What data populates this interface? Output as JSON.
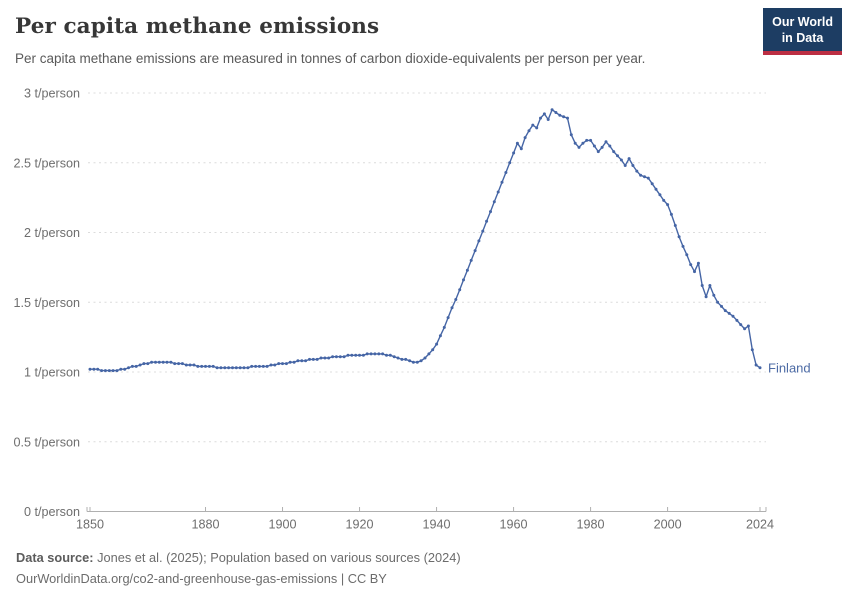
{
  "header": {
    "title": "Per capita methane emissions",
    "subtitle": "Per capita methane emissions are measured in tonnes of carbon dioxide-equivalents per person per year.",
    "logo": {
      "line1": "Our World",
      "line2": "in Data"
    }
  },
  "chart_data": {
    "type": "line",
    "title": "Per capita methane emissions",
    "unit": "t/person",
    "entity": "Finland",
    "xlim": [
      1850,
      2024
    ],
    "ylim": [
      0,
      3
    ],
    "grid": "horizontal dashed",
    "legend_position": "end-of-line label",
    "x_ticks": [
      1850,
      1880,
      1900,
      1920,
      1940,
      1960,
      1980,
      2000,
      2024
    ],
    "y_ticks": [
      {
        "value": 0,
        "label": "0 t/person"
      },
      {
        "value": 0.5,
        "label": "0.5 t/person"
      },
      {
        "value": 1,
        "label": "1 t/person"
      },
      {
        "value": 1.5,
        "label": "1.5 t/person"
      },
      {
        "value": 2,
        "label": "2 t/person"
      },
      {
        "value": 2.5,
        "label": "2.5 t/person"
      },
      {
        "value": 3,
        "label": "3 t/person"
      }
    ],
    "colors": {
      "grid": "#dcdcdc",
      "axis": "#b0b0b0",
      "series_label": "#4d6ba5"
    },
    "years": [
      1850,
      1851,
      1852,
      1853,
      1854,
      1855,
      1856,
      1857,
      1858,
      1859,
      1860,
      1861,
      1862,
      1863,
      1864,
      1865,
      1866,
      1867,
      1868,
      1869,
      1870,
      1871,
      1872,
      1873,
      1874,
      1875,
      1876,
      1877,
      1878,
      1879,
      1880,
      1881,
      1882,
      1883,
      1884,
      1885,
      1886,
      1887,
      1888,
      1889,
      1890,
      1891,
      1892,
      1893,
      1894,
      1895,
      1896,
      1897,
      1898,
      1899,
      1900,
      1901,
      1902,
      1903,
      1904,
      1905,
      1906,
      1907,
      1908,
      1909,
      1910,
      1911,
      1912,
      1913,
      1914,
      1915,
      1916,
      1917,
      1918,
      1919,
      1920,
      1921,
      1922,
      1923,
      1924,
      1925,
      1926,
      1927,
      1928,
      1929,
      1930,
      1931,
      1932,
      1933,
      1934,
      1935,
      1936,
      1937,
      1938,
      1939,
      1940,
      1941,
      1942,
      1943,
      1944,
      1945,
      1946,
      1947,
      1948,
      1949,
      1950,
      1951,
      1952,
      1953,
      1954,
      1955,
      1956,
      1957,
      1958,
      1959,
      1960,
      1961,
      1962,
      1963,
      1964,
      1965,
      1966,
      1967,
      1968,
      1969,
      1970,
      1971,
      1972,
      1973,
      1974,
      1975,
      1976,
      1977,
      1978,
      1979,
      1980,
      1981,
      1982,
      1983,
      1984,
      1985,
      1986,
      1987,
      1988,
      1989,
      1990,
      1991,
      1992,
      1993,
      1994,
      1995,
      1996,
      1997,
      1998,
      1999,
      2000,
      2001,
      2002,
      2003,
      2004,
      2005,
      2006,
      2007,
      2008,
      2009,
      2010,
      2011,
      2012,
      2013,
      2014,
      2015,
      2016,
      2017,
      2018,
      2019,
      2020,
      2021,
      2022,
      2023,
      2024
    ],
    "series": [
      {
        "name": "Finland",
        "color": "#4565a5",
        "values": [
          1.02,
          1.02,
          1.02,
          1.01,
          1.01,
          1.01,
          1.01,
          1.01,
          1.02,
          1.02,
          1.03,
          1.04,
          1.04,
          1.05,
          1.06,
          1.06,
          1.07,
          1.07,
          1.07,
          1.07,
          1.07,
          1.07,
          1.06,
          1.06,
          1.06,
          1.05,
          1.05,
          1.05,
          1.04,
          1.04,
          1.04,
          1.04,
          1.04,
          1.03,
          1.03,
          1.03,
          1.03,
          1.03,
          1.03,
          1.03,
          1.03,
          1.03,
          1.04,
          1.04,
          1.04,
          1.04,
          1.04,
          1.05,
          1.05,
          1.06,
          1.06,
          1.06,
          1.07,
          1.07,
          1.08,
          1.08,
          1.08,
          1.09,
          1.09,
          1.09,
          1.1,
          1.1,
          1.1,
          1.11,
          1.11,
          1.11,
          1.11,
          1.12,
          1.12,
          1.12,
          1.12,
          1.12,
          1.13,
          1.13,
          1.13,
          1.13,
          1.13,
          1.12,
          1.12,
          1.11,
          1.1,
          1.09,
          1.09,
          1.08,
          1.07,
          1.07,
          1.08,
          1.1,
          1.13,
          1.16,
          1.2,
          1.26,
          1.32,
          1.39,
          1.46,
          1.52,
          1.59,
          1.66,
          1.73,
          1.8,
          1.87,
          1.94,
          2.01,
          2.08,
          2.15,
          2.22,
          2.29,
          2.36,
          2.43,
          2.5,
          2.57,
          2.64,
          2.6,
          2.68,
          2.73,
          2.77,
          2.75,
          2.82,
          2.85,
          2.81,
          2.88,
          2.86,
          2.84,
          2.83,
          2.82,
          2.7,
          2.64,
          2.61,
          2.64,
          2.66,
          2.66,
          2.62,
          2.58,
          2.61,
          2.65,
          2.62,
          2.58,
          2.55,
          2.52,
          2.48,
          2.53,
          2.48,
          2.44,
          2.41,
          2.4,
          2.39,
          2.35,
          2.31,
          2.27,
          2.23,
          2.2,
          2.13,
          2.05,
          1.97,
          1.9,
          1.84,
          1.77,
          1.72,
          1.78,
          1.62,
          1.54,
          1.62,
          1.55,
          1.5,
          1.47,
          1.44,
          1.42,
          1.4,
          1.37,
          1.34,
          1.31,
          1.33,
          1.16,
          1.05,
          1.03
        ]
      }
    ]
  },
  "footer": {
    "source_label": "Data source:",
    "source_text": "Jones et al. (2025); Population based on various sources (2024)",
    "citation": "OurWorldinData.org/co2-and-greenhouse-gas-emissions | CC BY"
  }
}
